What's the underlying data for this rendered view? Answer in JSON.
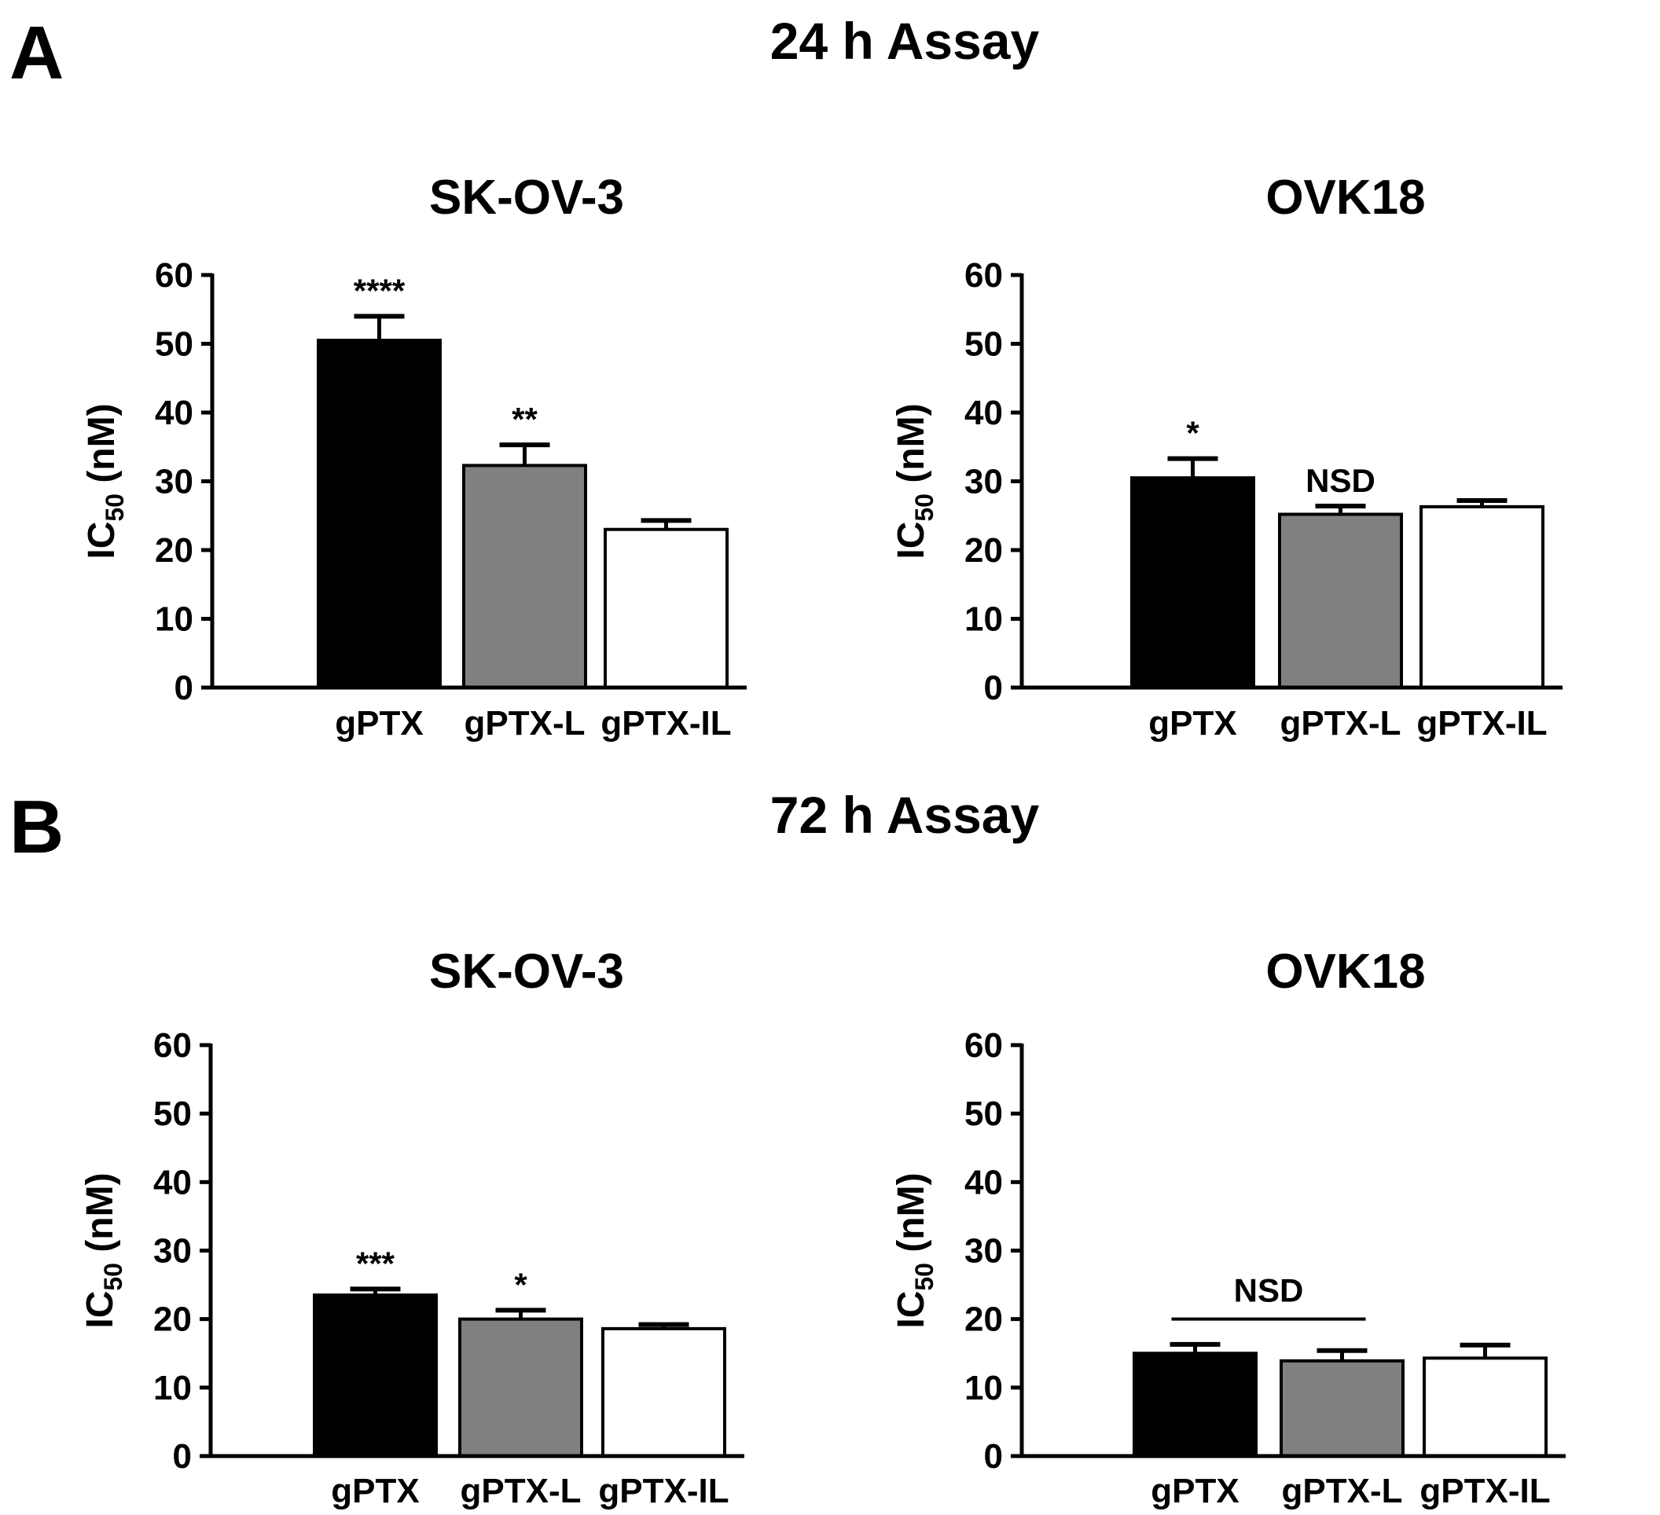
{
  "panels": [
    {
      "letter": "A",
      "title": "24 h Assay",
      "chart_indices": [
        0,
        1
      ]
    },
    {
      "letter": "B",
      "title": "72 h Assay",
      "chart_indices": [
        2,
        3
      ]
    }
  ],
  "colors": {
    "gPTX": "#000000",
    "gPTX-L": "#808080",
    "gPTX-IL": "#ffffff",
    "outline": "#000000"
  },
  "chart_data": [
    {
      "type": "bar",
      "title": "SK-OV-3",
      "panel": "A",
      "ylabel": "IC",
      "ylabel_sub": "50",
      "ylabel_unit": " (nM)",
      "ylim": [
        0,
        60
      ],
      "yticks": [
        "0",
        "10",
        "20",
        "30",
        "40",
        "50",
        "60"
      ],
      "categories": [
        "gPTX",
        "gPTX-L",
        "gPTX-IL"
      ],
      "values": [
        50.5,
        32.3,
        23.0
      ],
      "errors": [
        3.5,
        3.0,
        1.3
      ],
      "significance": [
        "****",
        "**",
        ""
      ]
    },
    {
      "type": "bar",
      "title": "OVK18",
      "panel": "A",
      "ylabel": "IC",
      "ylabel_sub": "50",
      "ylabel_unit": " (nM)",
      "ylim": [
        0,
        60
      ],
      "yticks": [
        "0",
        "10",
        "20",
        "30",
        "40",
        "50",
        "60"
      ],
      "categories": [
        "gPTX",
        "gPTX-L",
        "gPTX-IL"
      ],
      "values": [
        30.5,
        25.2,
        26.3
      ],
      "errors": [
        2.8,
        1.2,
        0.9
      ],
      "significance": [
        "*",
        "NSD",
        ""
      ]
    },
    {
      "type": "bar",
      "title": "SK-OV-3",
      "panel": "B",
      "ylabel": "IC",
      "ylabel_sub": "50",
      "ylabel_unit": " (nM)",
      "ylim": [
        0,
        60
      ],
      "yticks": [
        "0",
        "10",
        "20",
        "30",
        "40",
        "50",
        "60"
      ],
      "categories": [
        "gPTX",
        "gPTX-L",
        "gPTX-IL"
      ],
      "values": [
        23.5,
        20.0,
        18.6
      ],
      "errors": [
        0.9,
        1.3,
        0.6
      ],
      "significance": [
        "***",
        "*",
        ""
      ]
    },
    {
      "type": "bar",
      "title": "OVK18",
      "panel": "B",
      "ylabel": "IC",
      "ylabel_sub": "50",
      "ylabel_unit": " (nM)",
      "ylim": [
        0,
        60
      ],
      "yticks": [
        "0",
        "10",
        "20",
        "30",
        "40",
        "50",
        "60"
      ],
      "categories": [
        "gPTX",
        "gPTX-L",
        "gPTX-IL"
      ],
      "values": [
        15.0,
        13.9,
        14.3
      ],
      "errors": [
        1.3,
        1.5,
        1.9
      ],
      "significance": [
        "",
        "",
        ""
      ],
      "bracket": {
        "label": "NSD",
        "from": 0,
        "to": 1,
        "y": 20.0
      }
    }
  ]
}
